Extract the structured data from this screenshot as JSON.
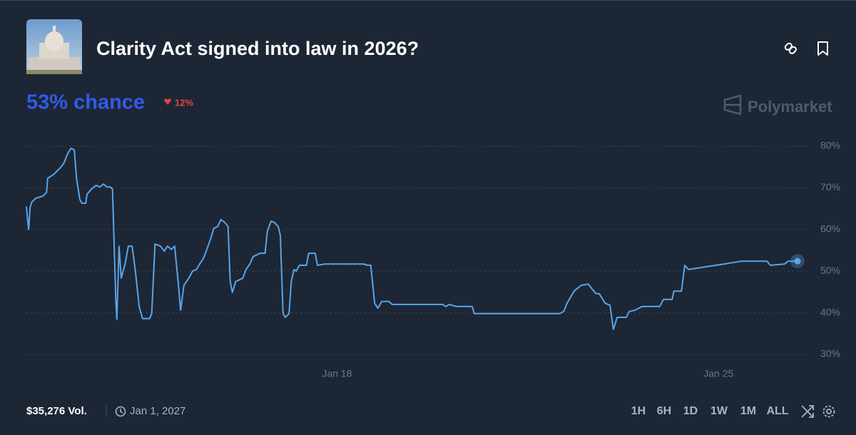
{
  "header": {
    "title": "Clarity Act signed into law in 2026?"
  },
  "summary": {
    "chance": "53% chance",
    "change": "12%",
    "brand": "Polymarket"
  },
  "chart_data": {
    "type": "line",
    "color": "#58a6e8",
    "grid": true,
    "x": [
      12.3,
      12.34,
      12.37,
      12.4,
      12.47,
      12.6,
      12.67,
      12.69,
      12.8,
      12.86,
      12.93,
      12.99,
      13.06,
      13.12,
      13.18,
      13.22,
      13.28,
      13.32,
      13.39,
      13.41,
      13.49,
      13.58,
      13.65,
      13.71,
      13.78,
      13.84,
      13.88,
      13.94,
      13.96,
      14.0,
      14.04,
      14.11,
      14.17,
      14.24,
      14.3,
      14.37,
      14.43,
      14.56,
      14.6,
      14.66,
      14.76,
      14.83,
      14.89,
      14.96,
      15.02,
      15.09,
      15.13,
      15.19,
      15.28,
      15.35,
      15.42,
      15.48,
      15.55,
      15.61,
      15.68,
      15.74,
      15.81,
      15.87,
      15.94,
      16.0,
      16.04,
      16.08,
      16.14,
      16.27,
      16.33,
      16.4,
      16.46,
      16.59,
      16.68,
      16.72,
      16.79,
      16.85,
      16.92,
      16.96,
      17.01,
      17.05,
      17.12,
      17.16,
      17.21,
      17.25,
      17.31,
      17.44,
      17.48,
      17.6,
      17.64,
      17.77,
      18.49,
      18.56,
      18.62,
      18.69,
      18.75,
      18.82,
      18.95,
      19.01,
      19.93,
      20.0,
      20.06,
      20.19,
      20.48,
      20.52,
      22.09,
      22.16,
      22.22,
      22.35,
      22.48,
      22.61,
      22.68,
      22.75,
      22.81,
      22.92,
      23.01,
      23.07,
      23.14,
      23.31,
      23.36,
      23.46,
      23.6,
      23.92,
      23.99,
      24.15,
      24.18,
      24.32,
      24.38,
      24.45,
      25.1,
      25.43,
      25.89,
      25.95,
      26.21,
      26.28,
      26.45
    ],
    "values": [
      65.5,
      60,
      65.4,
      66.6,
      67.5,
      68,
      68.9,
      72.3,
      73.2,
      74,
      74.9,
      76,
      78.3,
      79.5,
      79.1,
      72.3,
      67.2,
      66.3,
      66.3,
      68.4,
      69.7,
      70.6,
      70.2,
      70.9,
      70.2,
      70.2,
      69.7,
      43.2,
      38.4,
      56,
      48.3,
      51.7,
      56,
      56,
      50,
      41.5,
      38.6,
      38.6,
      39.8,
      56.5,
      56,
      54.8,
      56,
      55.2,
      56,
      46.6,
      40.6,
      46.6,
      48.3,
      50,
      50.4,
      51.7,
      53.1,
      55.2,
      57.7,
      60.3,
      60.7,
      62.4,
      61.7,
      60.7,
      47.5,
      44.9,
      47.5,
      48.3,
      50.4,
      51.7,
      53.5,
      54.3,
      54.3,
      59.5,
      62,
      61.7,
      60.7,
      58.6,
      39.8,
      38.9,
      39.8,
      47.5,
      50.4,
      50,
      51.4,
      51.4,
      54.3,
      54.3,
      51.4,
      51.7,
      51.7,
      51.4,
      51.4,
      42.3,
      41.1,
      42.7,
      42.7,
      42,
      42,
      41.5,
      42,
      41.5,
      41.5,
      39.8,
      39.8,
      40.3,
      42.3,
      45.2,
      46.6,
      46.9,
      45.7,
      44.6,
      44.6,
      42.3,
      41.8,
      36,
      38.9,
      38.9,
      40.3,
      40.6,
      41.5,
      41.5,
      43.2,
      43.2,
      45.2,
      45.2,
      51.4,
      50.4,
      51.7,
      52.4,
      52.4,
      51.4,
      51.7,
      52.4,
      52.4
    ],
    "xlim": [
      12.3,
      26.6
    ],
    "xticks": [
      {
        "value": 18,
        "label": "Jan 18"
      },
      {
        "value": 25,
        "label": "Jan 25"
      }
    ],
    "ylim": [
      30,
      80
    ],
    "yticks": [
      {
        "value": 30,
        "label": "30%"
      },
      {
        "value": 40,
        "label": "40%"
      },
      {
        "value": 50,
        "label": "50%"
      },
      {
        "value": 60,
        "label": "60%"
      },
      {
        "value": 70,
        "label": "70%"
      },
      {
        "value": 80,
        "label": "80%"
      }
    ]
  },
  "footer": {
    "volume": "$35,276 Vol.",
    "end_date": "Jan 1, 2027",
    "ranges": [
      "1H",
      "6H",
      "1D",
      "1W",
      "1M",
      "ALL"
    ]
  }
}
